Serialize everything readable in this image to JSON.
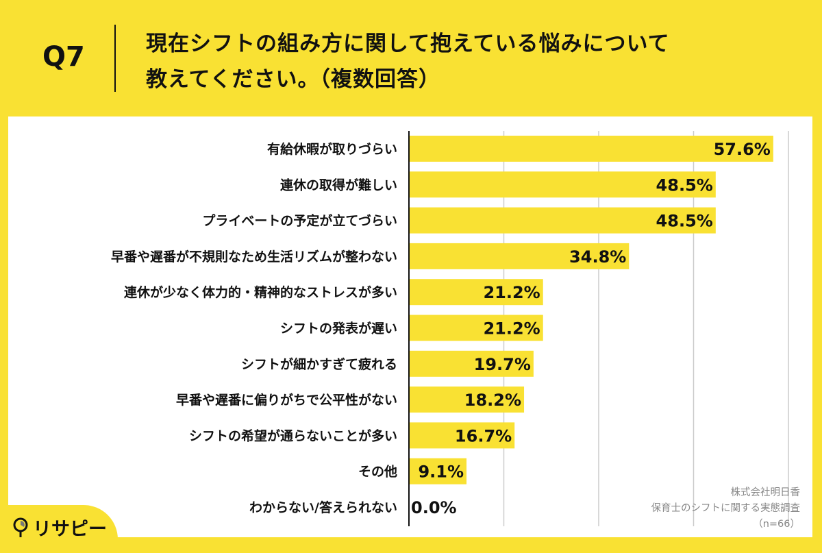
{
  "header": {
    "question": "Q7",
    "title_line1": "現在シフトの組み方に関して抱えている悩みについて",
    "title_line2": "教えてください。（複数回答）"
  },
  "source": {
    "company": "株式会社明日香",
    "survey": "保育士のシフトに関する実態調査",
    "n": "（n=66）"
  },
  "logo": {
    "text": "リサピー",
    "icon": "magnifier-pie-icon"
  },
  "colors": {
    "bar": "#f9e133",
    "background": "#f9e133",
    "panel": "#ffffff",
    "grid": "#cccccc"
  },
  "chart_data": {
    "type": "bar",
    "orientation": "horizontal",
    "categories": [
      "有給休暇が取りづらい",
      "連休の取得が難しい",
      "プライベートの予定が立てづらい",
      "早番や遅番が不規則なため生活リズムが整わない",
      "連休が少なく体力的・精神的なストレスが多い",
      "シフトの発表が遅い",
      "シフトが細かすぎて疲れる",
      "早番や遅番に偏りがちで公平性がない",
      "シフトの希望が通らないことが多い",
      "その他",
      "わからない/答えられない"
    ],
    "values": [
      57.6,
      48.5,
      48.5,
      34.8,
      21.2,
      21.2,
      19.7,
      18.2,
      16.7,
      9.1,
      0.0
    ],
    "value_labels": [
      "57.6%",
      "48.5%",
      "48.5%",
      "34.8%",
      "21.2%",
      "21.2%",
      "19.7%",
      "18.2%",
      "16.7%",
      "9.1%",
      "0.0%"
    ],
    "xlim": [
      0,
      60
    ],
    "grid_x": [
      15,
      30,
      45,
      60
    ],
    "grid": true,
    "unit": "%"
  }
}
